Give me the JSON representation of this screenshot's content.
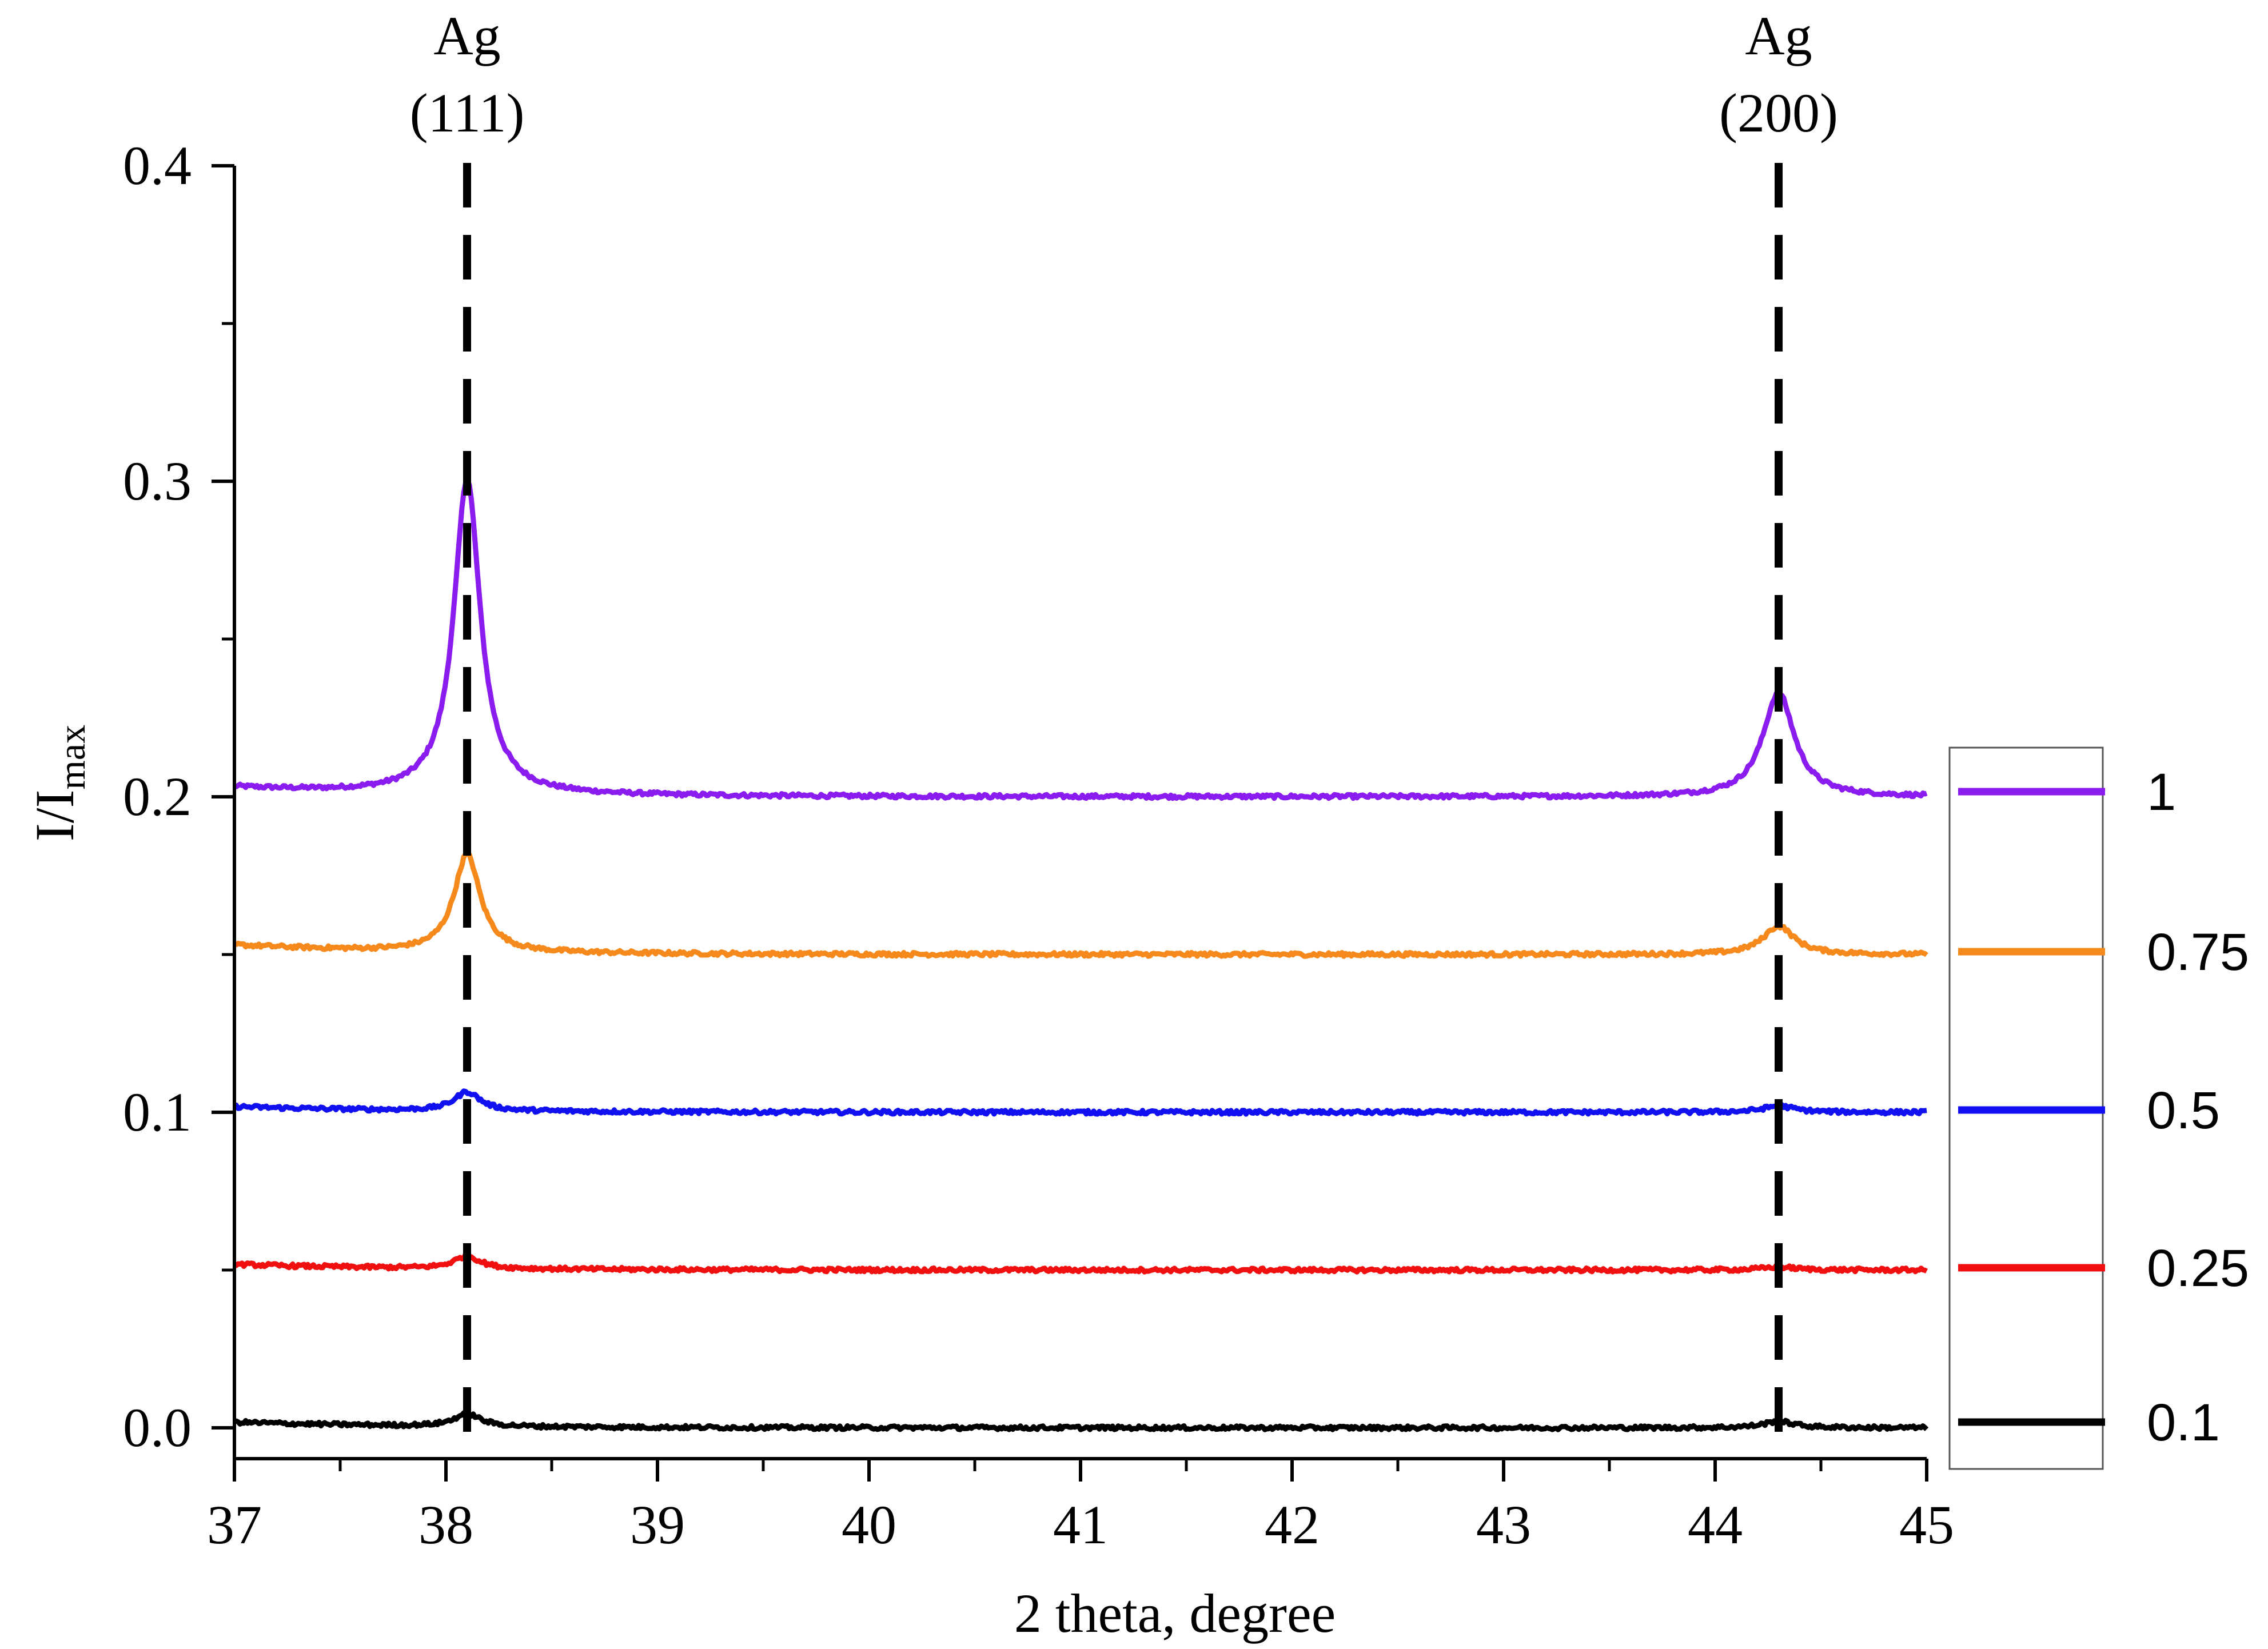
{
  "chart_data": {
    "type": "line",
    "title": "",
    "xlabel": "2 theta, degree",
    "ylabel": {
      "main": "I/I",
      "sub": "max"
    },
    "xlim": [
      37,
      45
    ],
    "ylim": [
      -0.01,
      0.4
    ],
    "xticks": [
      "37",
      "38",
      "39",
      "40",
      "41",
      "42",
      "43",
      "44",
      "45"
    ],
    "yticks": [
      "0.0",
      "0.1",
      "0.2",
      "0.3",
      "0.4"
    ],
    "reference_lines": [
      {
        "x": 38.1,
        "label_top": "Ag",
        "label_bottom": "(111)"
      },
      {
        "x": 44.3,
        "label_top": "Ag",
        "label_bottom": "(200)"
      }
    ],
    "legend_position": "right",
    "peak_positions": [
      38.1,
      44.3
    ],
    "series": [
      {
        "name": "1",
        "color": "#8B1CF0",
        "baseline": 0.2,
        "peak_111": 0.3,
        "peak_200": 0.233
      },
      {
        "name": "0.75",
        "color": "#F5891B",
        "baseline": 0.15,
        "peak_111": 0.181,
        "peak_200": 0.159
      },
      {
        "name": "0.5",
        "color": "#1010F0",
        "baseline": 0.1,
        "peak_111": 0.106,
        "peak_200": 0.102
      },
      {
        "name": "0.25",
        "color": "#F01010",
        "baseline": 0.05,
        "peak_111": 0.054,
        "peak_200": 0.051
      },
      {
        "name": "0.1",
        "color": "#000000",
        "baseline": 0.0,
        "peak_111": 0.004,
        "peak_200": 0.002
      }
    ]
  }
}
